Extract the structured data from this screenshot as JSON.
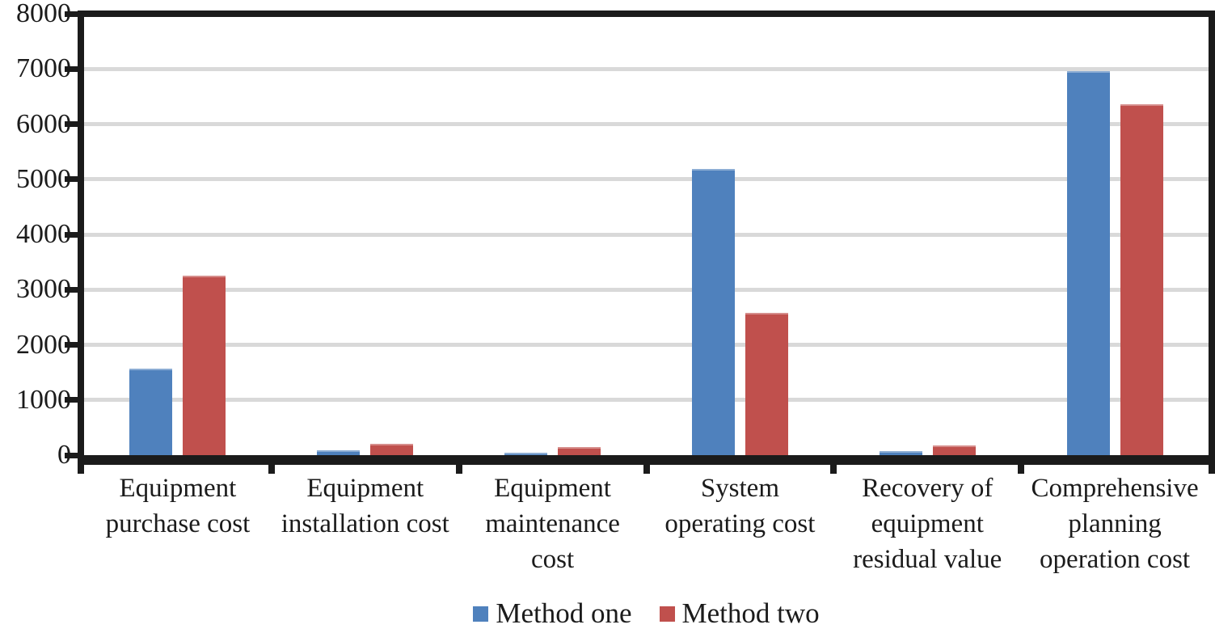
{
  "chart_data": {
    "type": "bar",
    "title": "",
    "xlabel": "",
    "ylabel": "",
    "categories": [
      "Equipment purchase cost",
      "Equipment installation cost",
      "Equipment maintenance cost",
      "System operating cost",
      "Recovery of equipment residual value",
      "Comprehensive planning operation cost"
    ],
    "category_label_lines": [
      [
        "Equipment",
        "purchase cost"
      ],
      [
        "Equipment",
        "installation cost"
      ],
      [
        "Equipment",
        "maintenance",
        "cost"
      ],
      [
        "System",
        "operating cost"
      ],
      [
        "Recovery of",
        "equipment",
        "residual value"
      ],
      [
        "Comprehensive",
        "planning",
        "operation cost"
      ]
    ],
    "series": [
      {
        "name": "Method one",
        "color": "#4F81BD",
        "values": [
          1570,
          90,
          45,
          5180,
          75,
          6960
        ]
      },
      {
        "name": "Method two",
        "color": "#C0504D",
        "values": [
          3260,
          210,
          140,
          2580,
          175,
          6360
        ]
      }
    ],
    "ylim": [
      0,
      8000
    ],
    "ytick_step": 1000,
    "yticks": [
      "0",
      "1000",
      "2000",
      "3000",
      "4000",
      "5000",
      "6000",
      "7000",
      "8000"
    ],
    "grid": true,
    "gridline_color": "#d9d9d9",
    "axis_color": "#1b1b1b",
    "legend_position": "bottom"
  }
}
